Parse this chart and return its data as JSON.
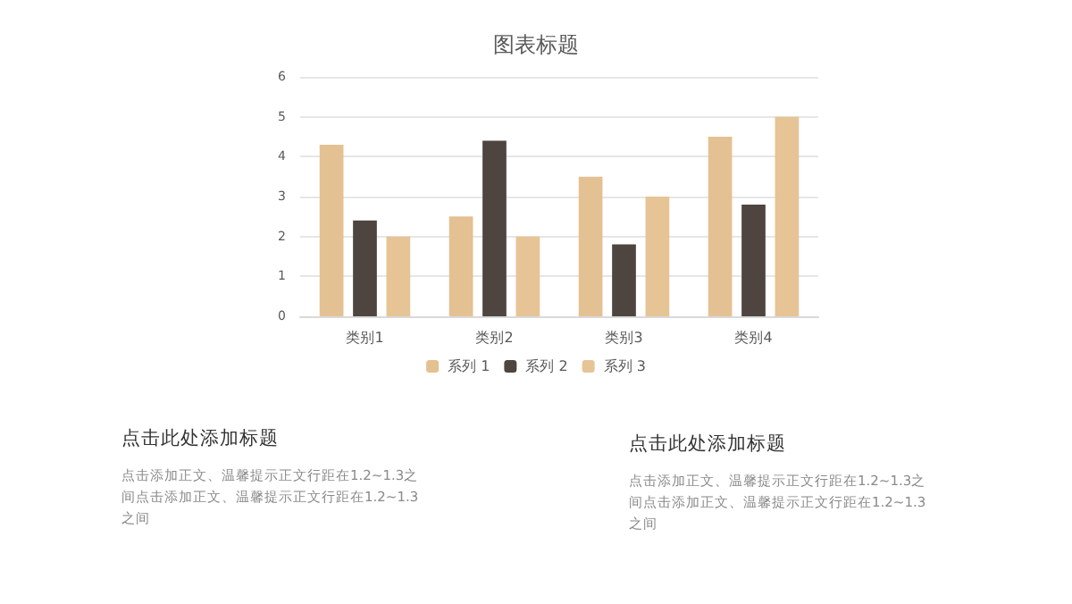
{
  "chart_data": {
    "type": "bar",
    "title": "图表标题",
    "categories": [
      "类别1",
      "类别2",
      "类别3",
      "类别4"
    ],
    "series": [
      {
        "name": "系列 1",
        "color": "#e4c192",
        "values": [
          4.3,
          2.5,
          3.5,
          4.5
        ]
      },
      {
        "name": "系列 2",
        "color": "#4e4540",
        "values": [
          2.4,
          4.4,
          1.8,
          2.8
        ]
      },
      {
        "name": "系列 3",
        "color": "#e6c495",
        "values": [
          2,
          2,
          3,
          5
        ]
      }
    ],
    "ylim": [
      0,
      6
    ],
    "yticks": [
      0,
      1,
      2,
      3,
      4,
      5,
      6
    ],
    "grid": "y",
    "legend": "bottom",
    "annotations": [
      "点击此处添加标题",
      "点击添加正文、温馨提示正文行距在1.2~1.3之间点击添加正文、温馨提示正文行距在1.2~1.3之间",
      "点击此处添加标题",
      "点击添加正文、温馨提示正文行距在1.2~1.3之间点击添加正文、温馨提示正文行距在1.2~1.3之间"
    ]
  }
}
